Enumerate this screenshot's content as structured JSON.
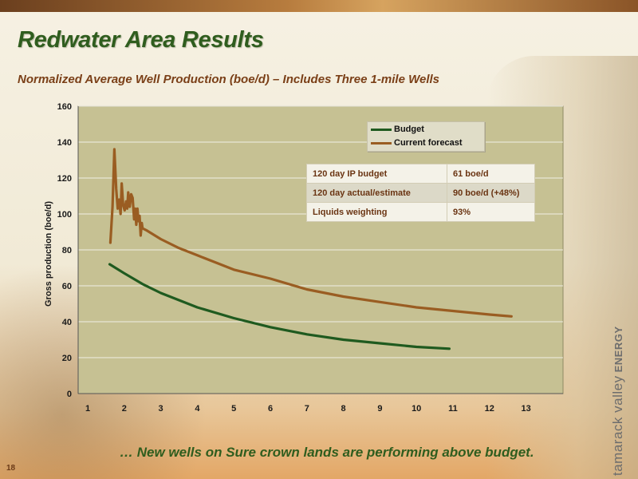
{
  "slide": {
    "title": "Redwater Area Results",
    "subtitle": "Normalized Average Well Production (boe/d) – Includes Three 1-mile Wells",
    "footer": "… New wells on Sure crown lands are performing above budget.",
    "page_number": "18",
    "brand_name": "tamarack valley",
    "brand_suffix": "ENERGY"
  },
  "colors": {
    "title_green": "#2f5d1e",
    "plot_bg": "#c6c193",
    "budget_line": "#1f5a1f",
    "forecast_line": "#9a5d22"
  },
  "info_table": {
    "rows": [
      {
        "label": "120 day IP budget",
        "value": "61 boe/d"
      },
      {
        "label": "120 day actual/estimate",
        "value": "90 boe/d (+48%)"
      },
      {
        "label": "Liquids weighting",
        "value": "93%"
      }
    ]
  },
  "chart_data": {
    "type": "line",
    "ylabel": "Gross production (boe/d)",
    "xlabel": "",
    "xlim": [
      1,
      13
    ],
    "ylim": [
      0,
      160
    ],
    "x_ticks": [
      1,
      2,
      3,
      4,
      5,
      6,
      7,
      8,
      9,
      10,
      11,
      12,
      13
    ],
    "y_ticks": [
      0,
      20,
      40,
      60,
      80,
      100,
      120,
      140,
      160
    ],
    "grid": true,
    "legend_position": "top-right",
    "series": [
      {
        "name": "Budget",
        "x": [
          1.6,
          2.0,
          2.5,
          3.0,
          3.5,
          4.0,
          5.0,
          6.0,
          7.0,
          8.0,
          9.0,
          10.0,
          10.9
        ],
        "y": [
          72,
          67,
          61,
          56,
          52,
          48,
          42,
          37,
          33,
          30,
          28,
          26,
          25
        ]
      },
      {
        "name": "Current forecast",
        "x": [
          1.62,
          1.68,
          1.73,
          1.78,
          1.82,
          1.86,
          1.9,
          1.93,
          1.97,
          2.01,
          2.05,
          2.08,
          2.11,
          2.15,
          2.19,
          2.23,
          2.27,
          2.3,
          2.33,
          2.36,
          2.39,
          2.42,
          2.45,
          2.48,
          2.5,
          2.6,
          3.0,
          3.5,
          4.0,
          4.5,
          5.0,
          6.0,
          7.0,
          8.0,
          9.0,
          10.0,
          11.0,
          12.0,
          12.6
        ],
        "y": [
          84,
          104,
          136,
          114,
          103,
          108,
          100,
          117,
          105,
          102,
          107,
          103,
          112,
          104,
          111,
          109,
          97,
          103,
          94,
          103,
          96,
          99,
          88,
          95,
          92,
          91,
          86,
          81,
          77,
          73,
          69,
          64,
          58,
          54,
          51,
          48,
          46,
          44,
          43
        ]
      }
    ]
  }
}
